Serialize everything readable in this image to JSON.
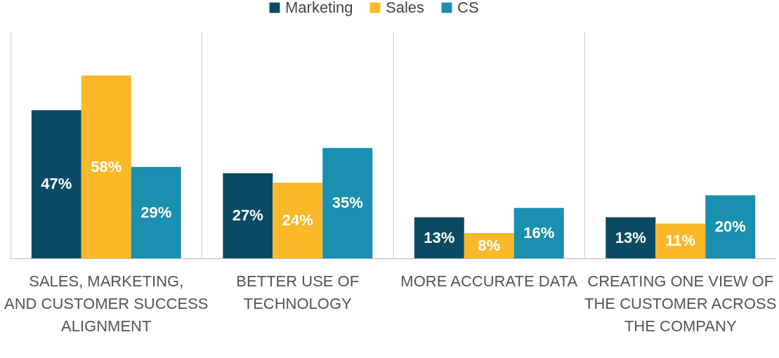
{
  "chart_data": {
    "type": "bar",
    "categories": [
      "SALES, MARKETING, AND CUSTOMER SUCCESS ALIGNMENT",
      "BETTER USE OF TECHNOLOGY",
      "MORE ACCURATE DATA",
      "CREATING ONE VIEW OF THE CUSTOMER ACROSS THE COMPANY"
    ],
    "series": [
      {
        "name": "Marketing",
        "color": "#0b4a63",
        "values": [
          47,
          27,
          13,
          13
        ],
        "value_labels": [
          "47%",
          "27%",
          "13%",
          "13%"
        ]
      },
      {
        "name": "Sales",
        "color": "#fbb829",
        "values": [
          58,
          24,
          8,
          11
        ],
        "value_labels": [
          "58%",
          "24%",
          "8%",
          "11%"
        ]
      },
      {
        "name": "CS",
        "color": "#1a8fb0",
        "values": [
          29,
          35,
          16,
          20
        ],
        "value_labels": [
          "29%",
          "35%",
          "16%",
          "20%"
        ]
      }
    ],
    "legend": "top",
    "grid": "x",
    "tick_labels": "x"
  }
}
